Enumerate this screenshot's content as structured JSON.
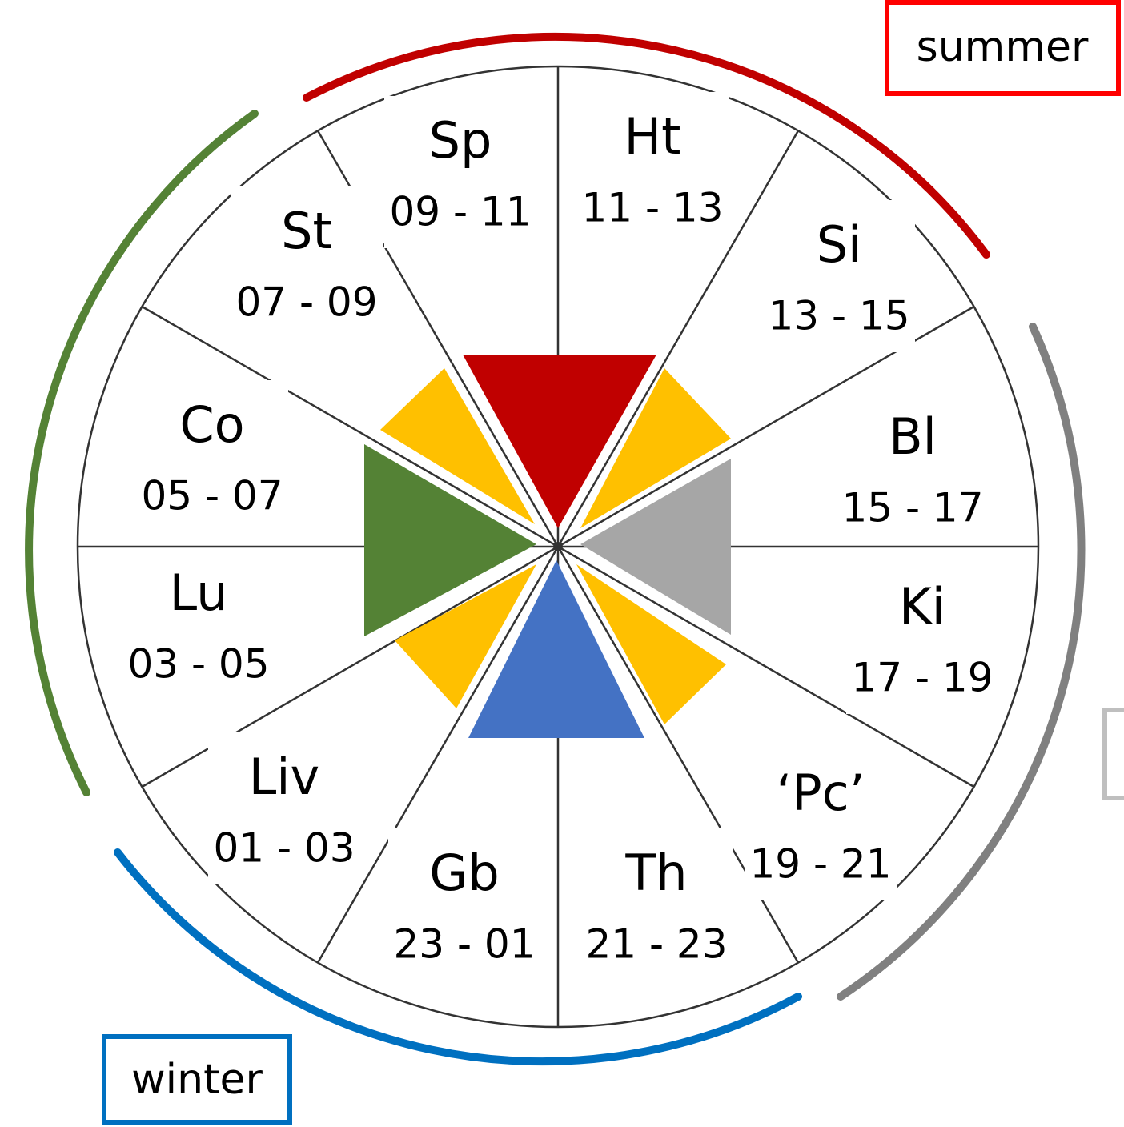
{
  "season_labels": {
    "summer": "summer",
    "winter": "winter"
  },
  "segments": [
    {
      "name": "Sp",
      "time": "09 - 11"
    },
    {
      "name": "Ht",
      "time": "11 - 13"
    },
    {
      "name": "Si",
      "time": "13 - 15"
    },
    {
      "name": "Bl",
      "time": "15 - 17"
    },
    {
      "name": "Ki",
      "time": "17 - 19"
    },
    {
      "name": "‘Pc’",
      "time": "19 - 21"
    },
    {
      "name": "Th",
      "time": "21 - 23"
    },
    {
      "name": "Gb",
      "time": "23 - 01"
    },
    {
      "name": "Liv",
      "time": "01 - 03"
    },
    {
      "name": "Lu",
      "time": "03 - 05"
    },
    {
      "name": "Co",
      "time": "05 - 07"
    },
    {
      "name": "St",
      "time": "07 - 09"
    }
  ]
}
